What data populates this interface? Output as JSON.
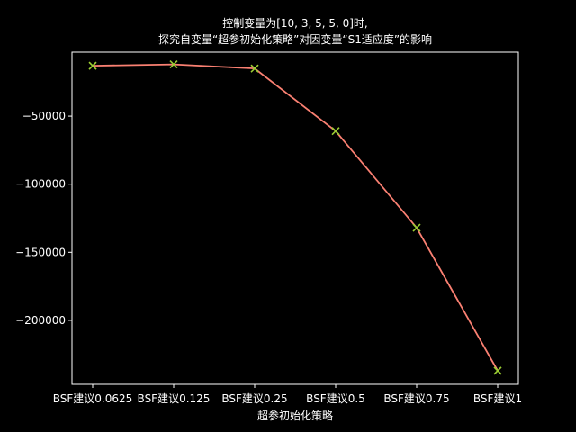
{
  "chart_data": {
    "type": "line",
    "title_lines": [
      "控制变量为[10, 3, 5, 5, 0]时,",
      "探究自变量“超参初始化策略”对因变量“S1适应度”的影响"
    ],
    "xlabel": "超参初始化策略",
    "ylabel": "",
    "categories": [
      "BSF建议0.0625",
      "BSF建议0.125",
      "BSF建议0.25",
      "BSF建议0.5",
      "BSF建议0.75",
      "BSF建议1"
    ],
    "series": [
      {
        "name": "S1适应度",
        "values": [
          -13000,
          -12000,
          -15000,
          -61000,
          -132000,
          -237000
        ],
        "line_color": "#fa8072",
        "marker_color": "#9acd32",
        "marker": "x"
      }
    ],
    "ylim": [
      -247000,
      -3000
    ],
    "yticks": [
      -50000,
      -100000,
      -150000,
      -200000
    ],
    "ytick_labels": [
      "−50000",
      "−100000",
      "−150000",
      "−200000"
    ],
    "grid": false
  }
}
